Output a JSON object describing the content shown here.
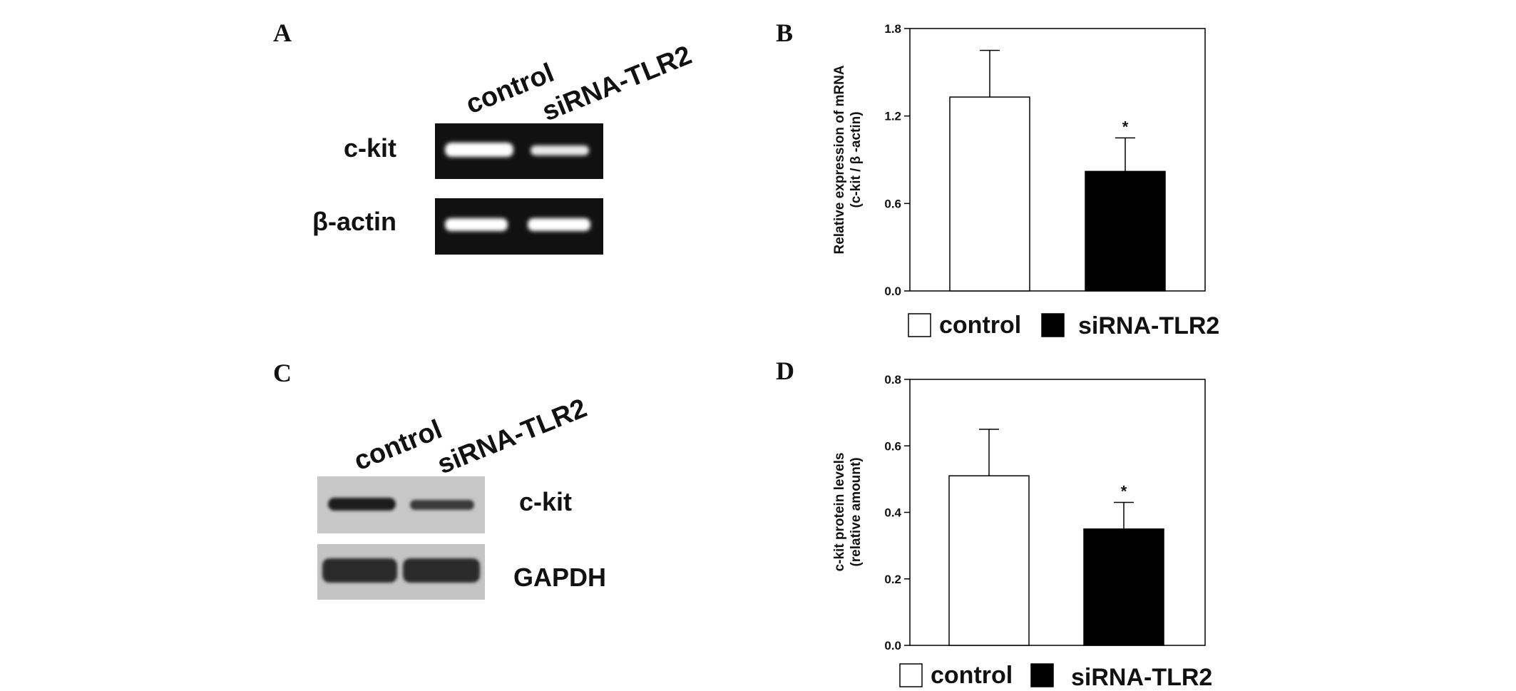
{
  "panels": {
    "a": {
      "letter": "A",
      "lanes": [
        "control",
        "siRNA-TLR2"
      ],
      "bands": [
        "c-kit",
        "β-actin"
      ]
    },
    "c": {
      "letter": "C",
      "lanes": [
        "control",
        "siRNA-TLR2"
      ],
      "bands": [
        "c-kit",
        "GAPDH"
      ]
    }
  },
  "chart_data": [
    {
      "panel_letter": "B",
      "type": "bar",
      "categories": [
        "control",
        "siRNA-TLR2"
      ],
      "values": [
        1.33,
        0.82
      ],
      "errors": [
        0.32,
        0.23
      ],
      "significance": [
        "",
        "*"
      ],
      "bar_colors": [
        "#ffffff",
        "#000000"
      ],
      "ylabel_line1": "Relative expression of mRNA",
      "ylabel_line2": "(c-kit / β -actin)",
      "ylim": [
        0,
        1.8
      ],
      "yticks": [
        0.0,
        0.6,
        1.2,
        1.8
      ],
      "ytick_labels": [
        "0.0",
        "0.6",
        "1.2",
        "1.8"
      ],
      "legend": [
        "control",
        "siRNA-TLR2"
      ],
      "legend_position": "bottom",
      "grid": false
    },
    {
      "panel_letter": "D",
      "type": "bar",
      "categories": [
        "control",
        "siRNA-TLR2"
      ],
      "values": [
        0.51,
        0.35
      ],
      "errors": [
        0.14,
        0.08
      ],
      "significance": [
        "",
        "*"
      ],
      "bar_colors": [
        "#ffffff",
        "#000000"
      ],
      "ylabel_line1": "c-kit protein levels",
      "ylabel_line2": "(relative amount)",
      "ylim": [
        0,
        0.8
      ],
      "yticks": [
        0.0,
        0.2,
        0.4,
        0.6,
        0.8
      ],
      "ytick_labels": [
        "0.0",
        "0.2",
        "0.4",
        "0.6",
        "0.8"
      ],
      "legend": [
        "control",
        "siRNA-TLR2"
      ],
      "legend_position": "bottom",
      "grid": false
    }
  ]
}
